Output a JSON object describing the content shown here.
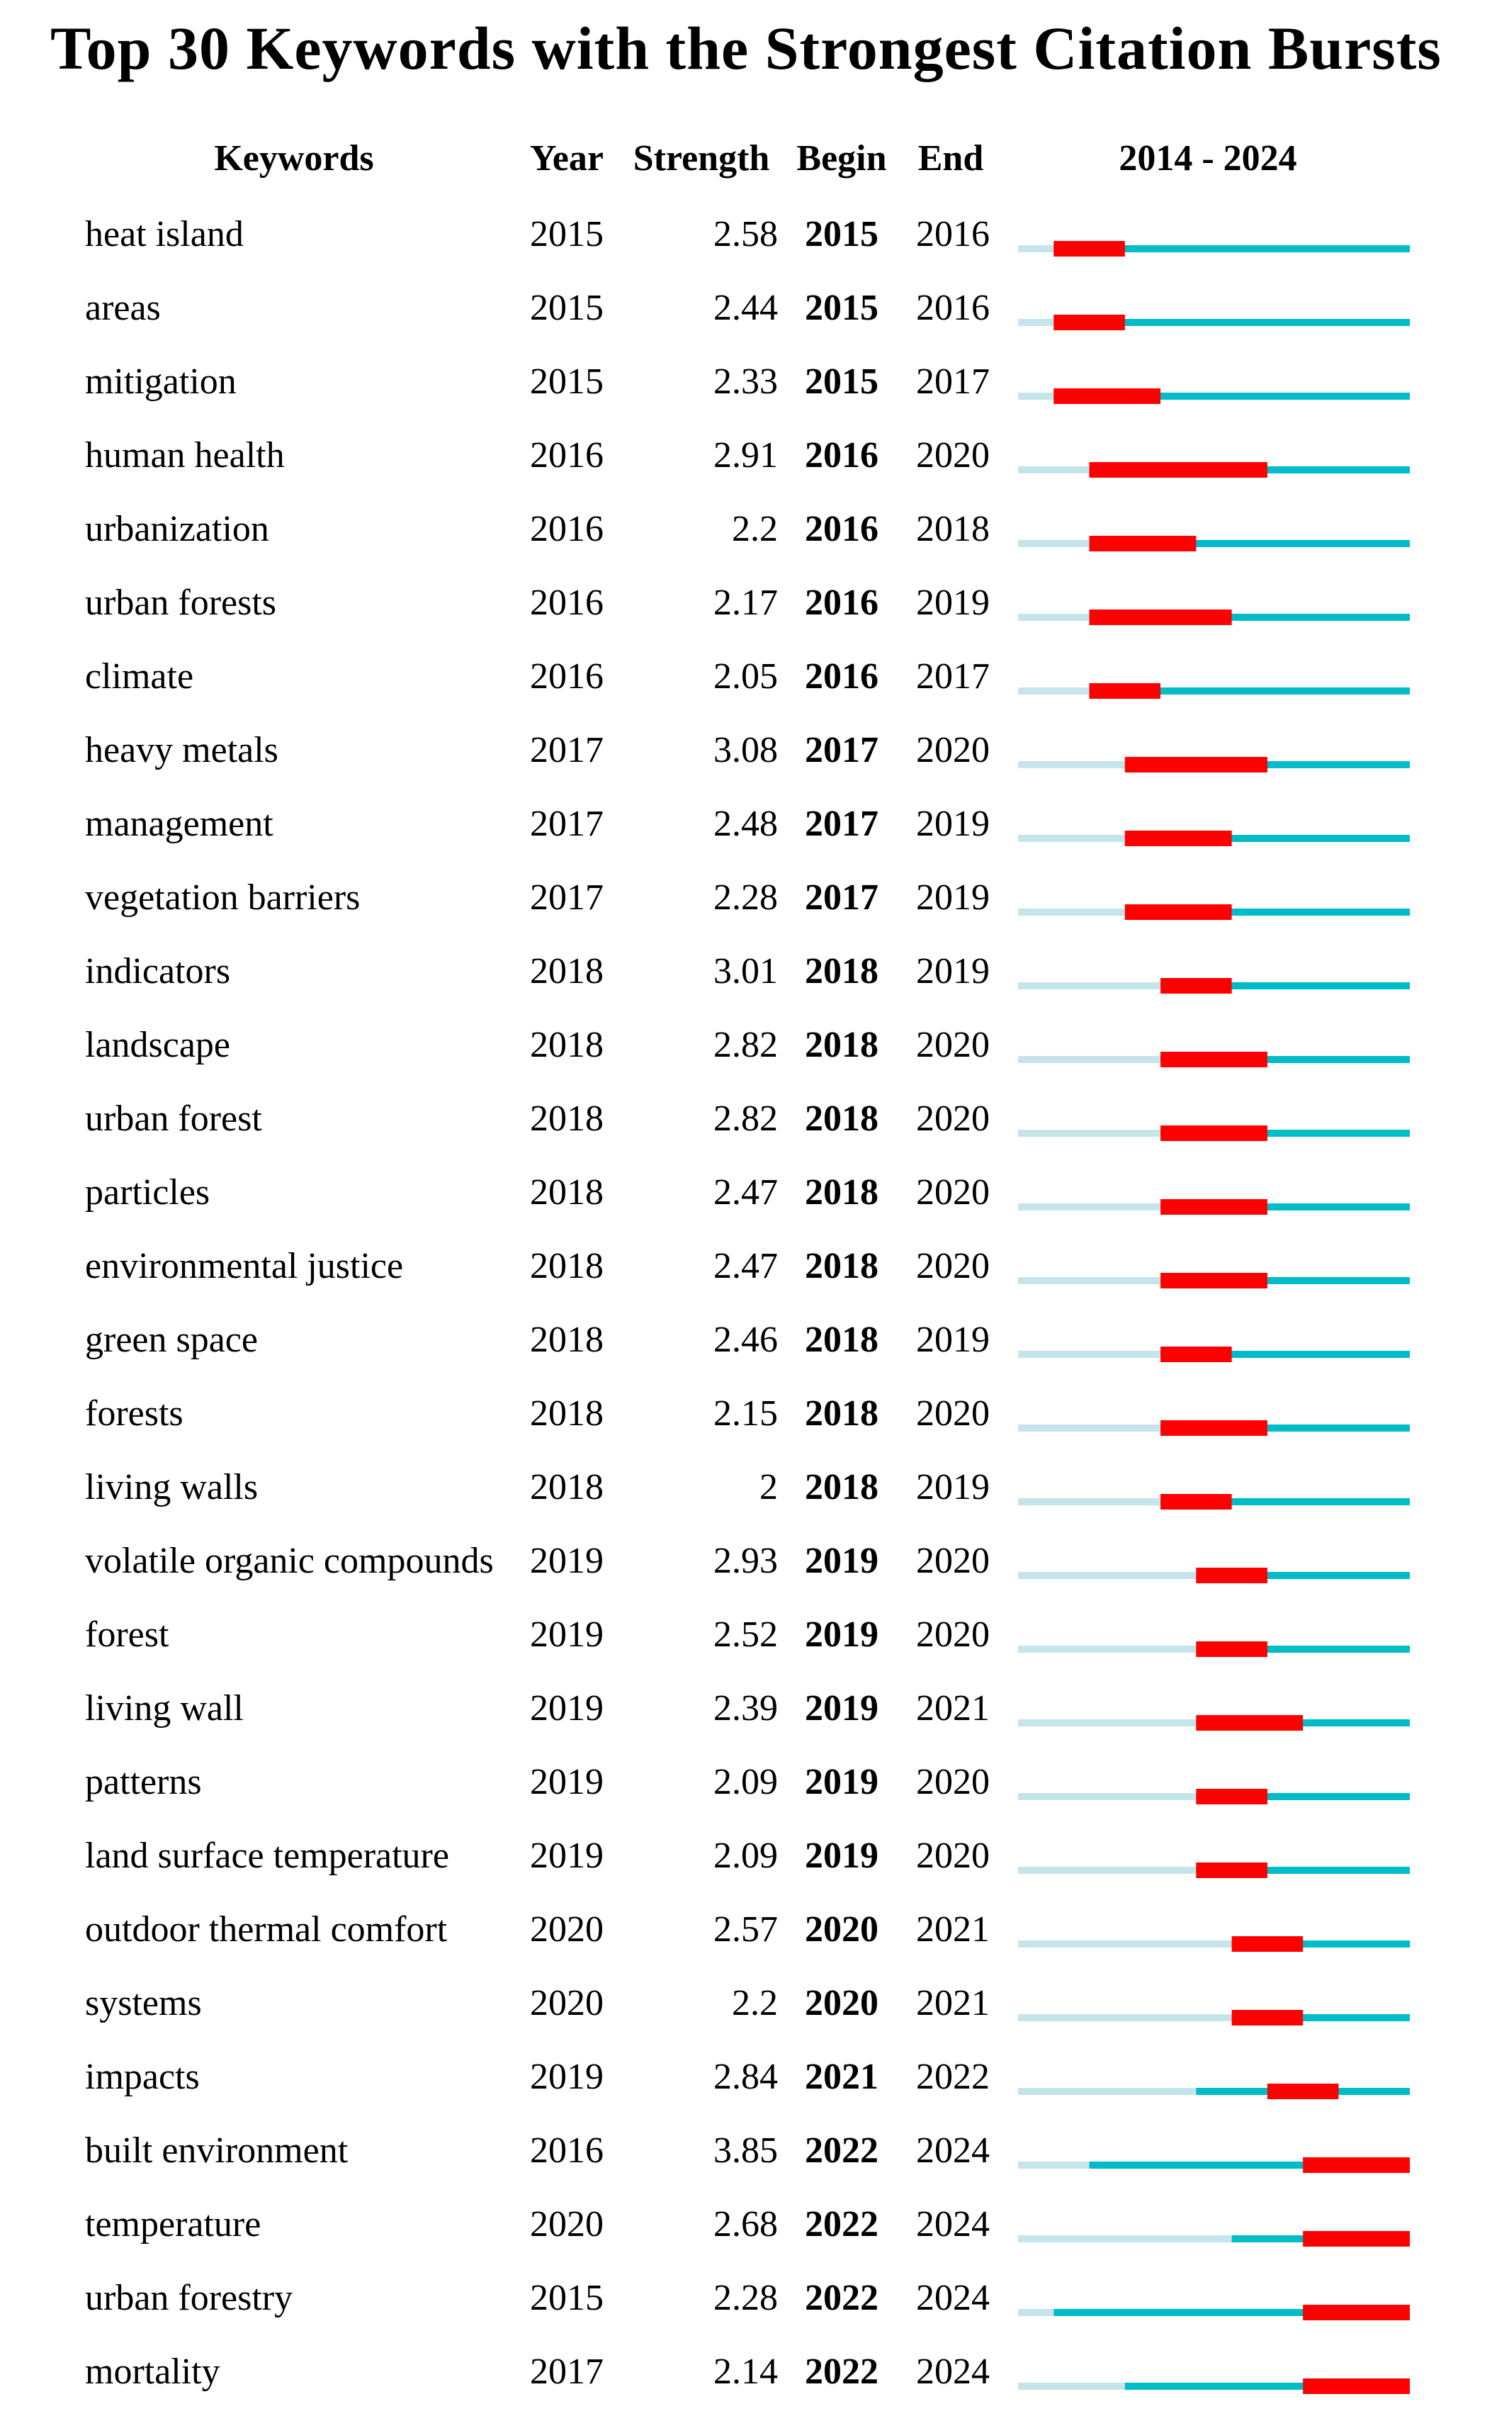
{
  "chart_data": {
    "type": "table",
    "title": "Top 30 Keywords with the Strongest Citation Bursts",
    "columns": {
      "keyword": "Keywords",
      "year": "Year",
      "strength": "Strength",
      "begin": "Begin",
      "end": "End",
      "timeline": "2014 - 2024"
    },
    "timeline_range": [
      2014,
      2024
    ],
    "colors": {
      "burst": "#ff0000",
      "active": "#00bcc8",
      "inactive": "#c6e5ea"
    },
    "rows": [
      {
        "keyword": "heat island",
        "year": "2015",
        "strength": "2.58",
        "begin": "2015",
        "end": "2016"
      },
      {
        "keyword": "areas",
        "year": "2015",
        "strength": "2.44",
        "begin": "2015",
        "end": "2016"
      },
      {
        "keyword": "mitigation",
        "year": "2015",
        "strength": "2.33",
        "begin": "2015",
        "end": "2017"
      },
      {
        "keyword": "human health",
        "year": "2016",
        "strength": "2.91",
        "begin": "2016",
        "end": "2020"
      },
      {
        "keyword": "urbanization",
        "year": "2016",
        "strength": "2.2",
        "begin": "2016",
        "end": "2018"
      },
      {
        "keyword": "urban forests",
        "year": "2016",
        "strength": "2.17",
        "begin": "2016",
        "end": "2019"
      },
      {
        "keyword": "climate",
        "year": "2016",
        "strength": "2.05",
        "begin": "2016",
        "end": "2017"
      },
      {
        "keyword": "heavy metals",
        "year": "2017",
        "strength": "3.08",
        "begin": "2017",
        "end": "2020"
      },
      {
        "keyword": "management",
        "year": "2017",
        "strength": "2.48",
        "begin": "2017",
        "end": "2019"
      },
      {
        "keyword": "vegetation barriers",
        "year": "2017",
        "strength": "2.28",
        "begin": "2017",
        "end": "2019"
      },
      {
        "keyword": "indicators",
        "year": "2018",
        "strength": "3.01",
        "begin": "2018",
        "end": "2019"
      },
      {
        "keyword": "landscape",
        "year": "2018",
        "strength": "2.82",
        "begin": "2018",
        "end": "2020"
      },
      {
        "keyword": "urban forest",
        "year": "2018",
        "strength": "2.82",
        "begin": "2018",
        "end": "2020"
      },
      {
        "keyword": "particles",
        "year": "2018",
        "strength": "2.47",
        "begin": "2018",
        "end": "2020"
      },
      {
        "keyword": "environmental justice",
        "year": "2018",
        "strength": "2.47",
        "begin": "2018",
        "end": "2020"
      },
      {
        "keyword": "green space",
        "year": "2018",
        "strength": "2.46",
        "begin": "2018",
        "end": "2019"
      },
      {
        "keyword": "forests",
        "year": "2018",
        "strength": "2.15",
        "begin": "2018",
        "end": "2020"
      },
      {
        "keyword": "living walls",
        "year": "2018",
        "strength": "2",
        "begin": "2018",
        "end": "2019"
      },
      {
        "keyword": "volatile organic compounds",
        "year": "2019",
        "strength": "2.93",
        "begin": "2019",
        "end": "2020"
      },
      {
        "keyword": "forest",
        "year": "2019",
        "strength": "2.52",
        "begin": "2019",
        "end": "2020"
      },
      {
        "keyword": "living wall",
        "year": "2019",
        "strength": "2.39",
        "begin": "2019",
        "end": "2021"
      },
      {
        "keyword": "patterns",
        "year": "2019",
        "strength": "2.09",
        "begin": "2019",
        "end": "2020"
      },
      {
        "keyword": "land surface temperature",
        "year": "2019",
        "strength": "2.09",
        "begin": "2019",
        "end": "2020"
      },
      {
        "keyword": "outdoor thermal comfort",
        "year": "2020",
        "strength": "2.57",
        "begin": "2020",
        "end": "2021"
      },
      {
        "keyword": "systems",
        "year": "2020",
        "strength": "2.2",
        "begin": "2020",
        "end": "2021"
      },
      {
        "keyword": "impacts",
        "year": "2019",
        "strength": "2.84",
        "begin": "2021",
        "end": "2022"
      },
      {
        "keyword": "built environment",
        "year": "2016",
        "strength": "3.85",
        "begin": "2022",
        "end": "2024"
      },
      {
        "keyword": "temperature",
        "year": "2020",
        "strength": "2.68",
        "begin": "2022",
        "end": "2024"
      },
      {
        "keyword": "urban forestry",
        "year": "2015",
        "strength": "2.28",
        "begin": "2022",
        "end": "2024"
      },
      {
        "keyword": "mortality",
        "year": "2017",
        "strength": "2.14",
        "begin": "2022",
        "end": "2024"
      }
    ]
  }
}
